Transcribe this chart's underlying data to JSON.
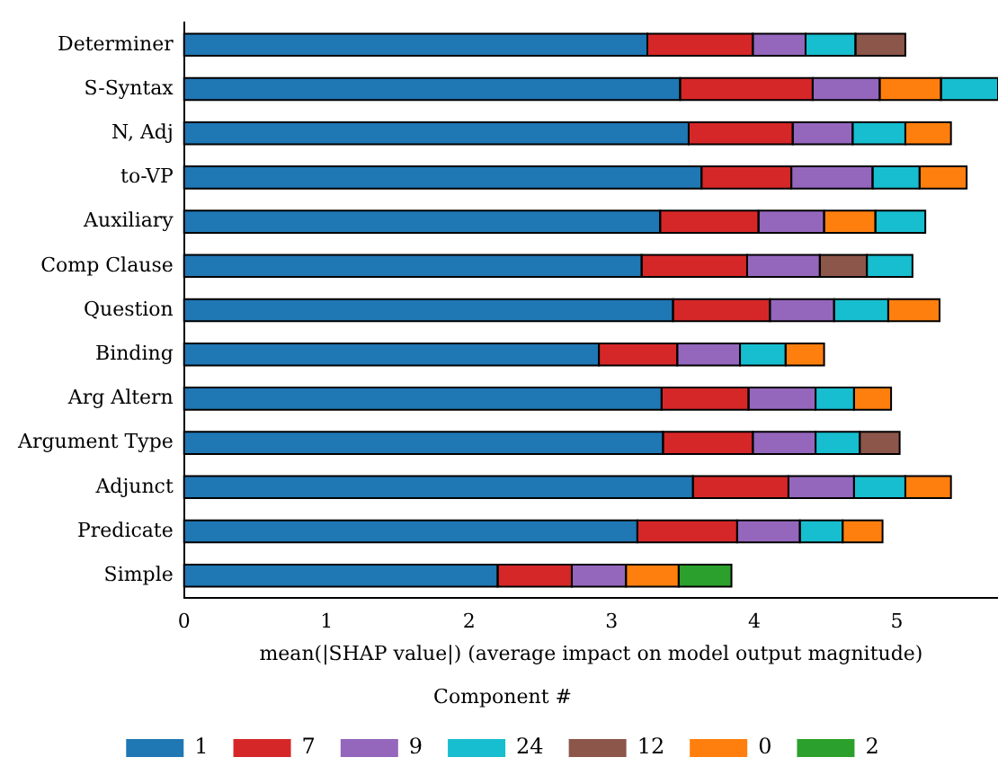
{
  "chart_data": {
    "type": "bar",
    "orientation": "horizontal",
    "stacked": true,
    "categories": [
      "Determiner",
      "S-Syntax",
      "N, Adj",
      "to-VP",
      "Auxiliary",
      "Comp Clause",
      "Question",
      "Binding",
      "Arg Altern",
      "Argument Type",
      "Adjunct",
      "Predicate",
      "Simple"
    ],
    "series": [
      {
        "name": "1",
        "color": "#1f77b4",
        "values": [
          3.25,
          3.48,
          3.54,
          3.63,
          3.34,
          3.21,
          3.43,
          2.91,
          3.35,
          3.36,
          3.57,
          3.18,
          2.2
        ]
      },
      {
        "name": "7",
        "color": "#d62728",
        "base": [
          3.25,
          3.48,
          3.54,
          3.63,
          3.34,
          3.21,
          3.43,
          2.91,
          3.35,
          3.36,
          3.57,
          3.18,
          2.2
        ],
        "values": [
          0.74,
          0.93,
          0.73,
          0.63,
          0.69,
          0.74,
          0.68,
          0.55,
          0.61,
          0.63,
          0.67,
          0.7,
          0.52
        ]
      },
      {
        "name": "9",
        "color": "#9467bd",
        "base": [
          3.99,
          4.41,
          4.27,
          4.26,
          4.03,
          3.95,
          4.11,
          3.46,
          3.96,
          3.99,
          4.24,
          3.88,
          2.72
        ],
        "values": [
          0.37,
          0.47,
          0.42,
          0.57,
          0.46,
          0.51,
          0.45,
          0.44,
          0.47,
          0.44,
          0.46,
          0.44,
          0.38
        ]
      },
      {
        "name": "24",
        "color": "#17becf",
        "base": [
          4.36,
          5.31,
          4.69,
          4.83,
          4.85,
          4.79,
          4.56,
          3.9,
          4.43,
          4.43,
          4.7,
          4.32,
          null
        ],
        "values": [
          0.35,
          0.4,
          0.37,
          0.33,
          0.35,
          0.32,
          0.38,
          0.32,
          0.27,
          0.31,
          0.36,
          0.3,
          null
        ]
      },
      {
        "name": "12",
        "color": "#8c564b",
        "base": [
          4.71,
          null,
          null,
          null,
          null,
          4.46,
          null,
          null,
          null,
          4.74,
          null,
          null,
          null
        ],
        "values": [
          0.35,
          null,
          null,
          null,
          null,
          0.33,
          null,
          null,
          null,
          0.28,
          null,
          null,
          null
        ]
      },
      {
        "name": "0",
        "color": "#ff7f0e",
        "base": [
          null,
          4.88,
          5.06,
          5.16,
          4.49,
          null,
          4.94,
          4.22,
          4.7,
          null,
          5.06,
          4.62,
          3.1
        ],
        "values": [
          null,
          0.43,
          0.32,
          0.33,
          0.36,
          null,
          0.36,
          0.27,
          0.26,
          null,
          0.32,
          0.28,
          0.37
        ]
      },
      {
        "name": "2",
        "color": "#2ca02c",
        "base": [
          null,
          null,
          null,
          null,
          null,
          null,
          null,
          null,
          null,
          null,
          null,
          null,
          3.47
        ],
        "values": [
          null,
          null,
          null,
          null,
          null,
          null,
          null,
          null,
          null,
          null,
          null,
          null,
          0.37
        ]
      }
    ],
    "xlim": [
      0,
      5.71
    ],
    "xticks": [
      0,
      1,
      2,
      3,
      4,
      5
    ],
    "xlabel": "mean(|SHAP value|) (average impact on model output magnitude)",
    "legend_title": "Component #",
    "legend": "bottom",
    "grid": false
  }
}
